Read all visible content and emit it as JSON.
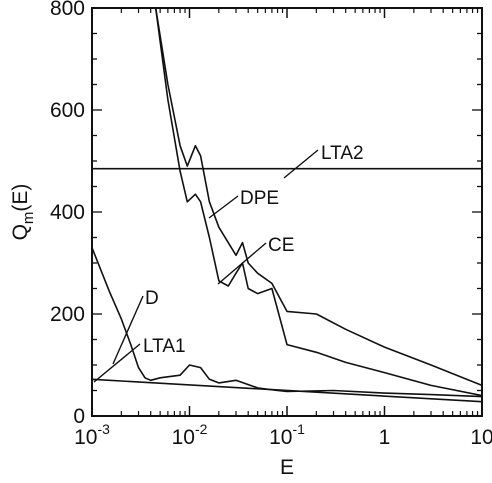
{
  "chart_data": {
    "type": "line",
    "xscale": "log",
    "xlim": [
      0.001,
      10
    ],
    "ylim": [
      0,
      800
    ],
    "grid": false,
    "xlabel": "E",
    "ylabel": "Q",
    "ylabel_sub": "m",
    "ylabel_arg": "(E)",
    "x_ticks": [
      {
        "value": 0.001,
        "base": "10",
        "exp": "-3"
      },
      {
        "value": 0.01,
        "base": "10",
        "exp": "-2"
      },
      {
        "value": 0.1,
        "base": "10",
        "exp": "-1"
      },
      {
        "value": 1,
        "base": "1",
        "exp": ""
      },
      {
        "value": 10,
        "base": "10",
        "exp": ""
      }
    ],
    "y_ticks": [
      {
        "value": 0,
        "label": "0"
      },
      {
        "value": 200,
        "label": "200"
      },
      {
        "value": 400,
        "label": "400"
      },
      {
        "value": 600,
        "label": "600"
      },
      {
        "value": 800,
        "label": "800"
      }
    ],
    "series": [
      {
        "name": "LTA2",
        "x": [
          0.001,
          10
        ],
        "y": [
          485,
          485
        ]
      },
      {
        "name": "DPE",
        "x": [
          0.0045,
          0.006,
          0.008,
          0.0095,
          0.0115,
          0.013,
          0.016,
          0.02,
          0.03,
          0.035,
          0.04,
          0.05,
          0.07,
          0.1,
          0.2,
          0.4,
          1,
          3,
          10
        ],
        "y": [
          800,
          650,
          530,
          490,
          530,
          510,
          420,
          370,
          315,
          340,
          300,
          280,
          260,
          205,
          200,
          170,
          135,
          100,
          60
        ]
      },
      {
        "name": "CE",
        "x": [
          0.0045,
          0.006,
          0.008,
          0.0095,
          0.0115,
          0.013,
          0.016,
          0.02,
          0.025,
          0.03,
          0.035,
          0.04,
          0.05,
          0.07,
          0.1,
          0.2,
          0.4,
          1,
          3,
          10
        ],
        "y": [
          800,
          620,
          480,
          420,
          435,
          420,
          350,
          265,
          255,
          280,
          300,
          250,
          240,
          250,
          140,
          125,
          105,
          85,
          60,
          40
        ]
      },
      {
        "name": "D",
        "x": [
          0.001,
          0.0015,
          0.002,
          0.0025,
          0.003,
          0.0035,
          0.004,
          0.005,
          0.008,
          0.01,
          0.013,
          0.016,
          0.02,
          0.03,
          0.05,
          0.08,
          0.1,
          0.3,
          1,
          3,
          10
        ],
        "y": [
          330,
          245,
          190,
          140,
          95,
          75,
          70,
          75,
          80,
          100,
          95,
          72,
          65,
          70,
          55,
          50,
          48,
          50,
          45,
          42,
          38
        ]
      },
      {
        "name": "LTA1",
        "x": [
          0.001,
          10
        ],
        "y": [
          72,
          28
        ]
      }
    ],
    "annotations": [
      "LTA2",
      "DPE",
      "CE",
      "D",
      "LTA1"
    ]
  }
}
